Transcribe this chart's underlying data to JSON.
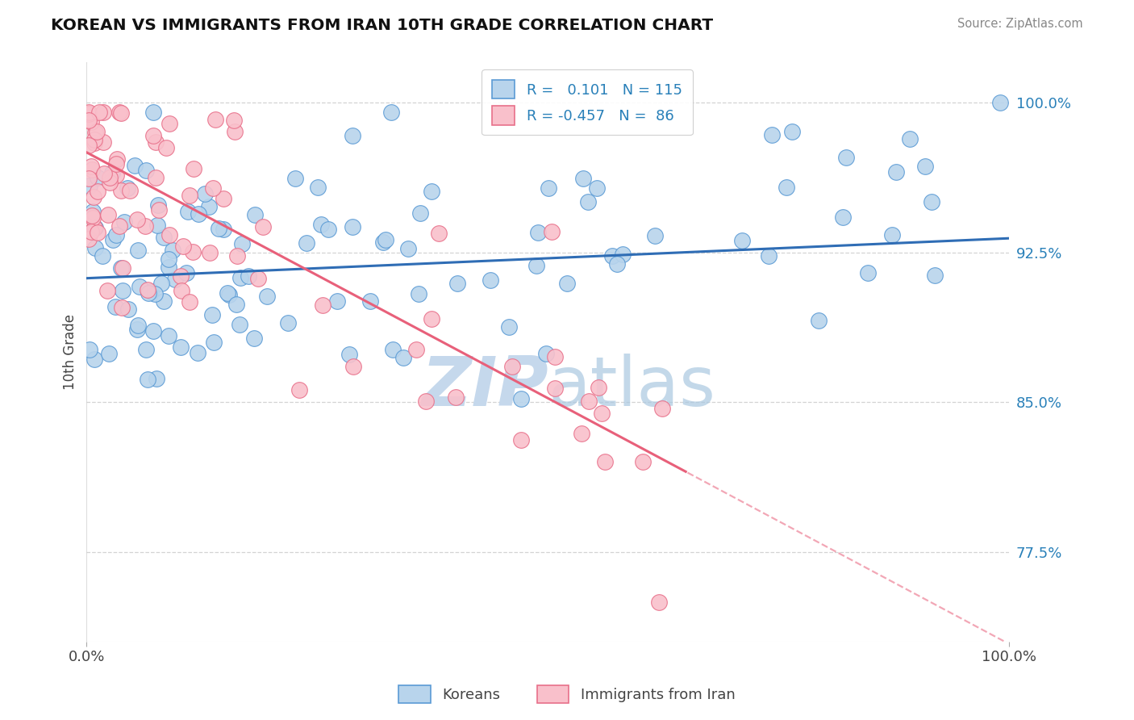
{
  "title": "KOREAN VS IMMIGRANTS FROM IRAN 10TH GRADE CORRELATION CHART",
  "source_text": "Source: ZipAtlas.com",
  "ylabel": "10th Grade",
  "xlim": [
    0.0,
    100.0
  ],
  "ylim": [
    73.0,
    102.0
  ],
  "yticks": [
    77.5,
    85.0,
    92.5,
    100.0
  ],
  "ytick_labels": [
    "77.5%",
    "85.0%",
    "92.5%",
    "100.0%"
  ],
  "xtick_labels": [
    "0.0%",
    "100.0%"
  ],
  "blue_R": 0.101,
  "blue_N": 115,
  "pink_R": -0.457,
  "pink_N": 86,
  "blue_color": "#b8d4ec",
  "blue_edge_color": "#5b9bd5",
  "pink_color": "#f9c0cb",
  "pink_edge_color": "#e8708a",
  "blue_line_color": "#2f6db5",
  "pink_line_color": "#e8607a",
  "watermark_color": "#c5d8ec",
  "background_color": "#ffffff",
  "legend_R_color": "#2980b9",
  "text_color": "#444444",
  "legend_label1": "Koreans",
  "legend_label2": "Immigrants from Iran",
  "grid_color": "#cccccc",
  "blue_line_start_y": 91.2,
  "blue_line_end_y": 93.2,
  "pink_line_start_y": 97.5,
  "pink_line_end_y": 81.5,
  "pink_solid_end_x": 65.0
}
